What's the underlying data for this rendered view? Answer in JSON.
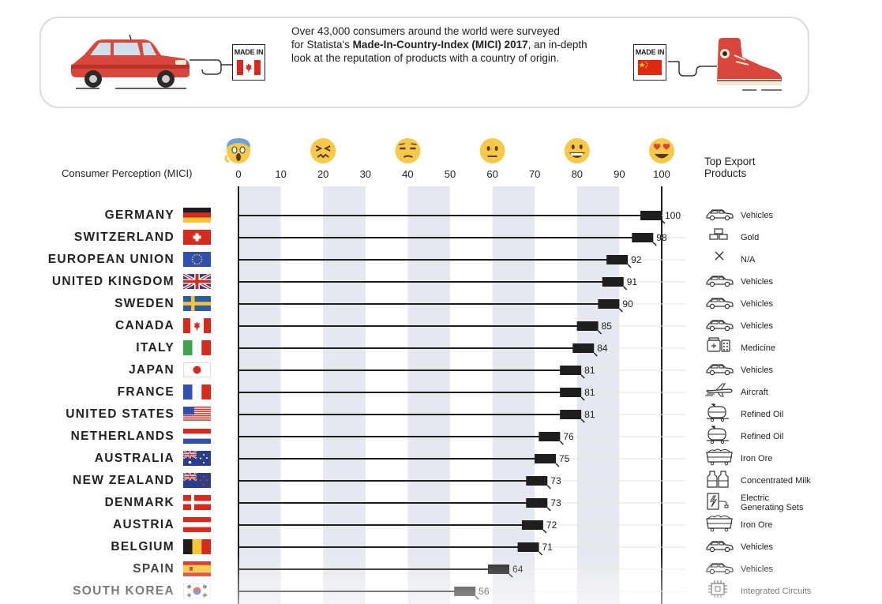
{
  "banner": {
    "made_in_label_left": "MADE IN",
    "made_in_label_right": "MADE IN",
    "intro_line1": "Over 43,000 consumers around the world were surveyed",
    "intro_line2_prefix": "for Statista's ",
    "intro_line2_bold": "Made-In-Country-Index (MICI) 2017",
    "intro_line2_suffix": ", an in-depth",
    "intro_line3": "look at the reputation of products with a country of origin.",
    "left_icon": "red-car-icon",
    "right_icon": "red-sneaker-icon"
  },
  "chart_data": {
    "type": "bar",
    "xlabel": "Consumer Perception (MICI)",
    "xlim": [
      0,
      100
    ],
    "x_ticks": [
      0,
      10,
      20,
      30,
      40,
      50,
      60,
      70,
      80,
      90,
      100
    ],
    "emoji_scale": [
      {
        "at": 0,
        "icon": "screaming-face-icon"
      },
      {
        "at": 20,
        "icon": "tired-face-icon"
      },
      {
        "at": 40,
        "icon": "unamused-face-icon"
      },
      {
        "at": 60,
        "icon": "neutral-face-icon"
      },
      {
        "at": 80,
        "icon": "grinning-face-icon"
      },
      {
        "at": 100,
        "icon": "heart-eyes-face-icon"
      }
    ],
    "exports_title_line1": "Top Export",
    "exports_title_line2": "Products",
    "categories": [
      "GERMANY",
      "SWITZERLAND",
      "EUROPEAN UNION",
      "UNITED KINGDOM",
      "SWEDEN",
      "CANADA",
      "ITALY",
      "JAPAN",
      "FRANCE",
      "UNITED STATES",
      "NETHERLANDS",
      "AUSTRALIA",
      "NEW ZEALAND",
      "DENMARK",
      "AUSTRIA",
      "BELGIUM",
      "SPAIN",
      "SOUTH KOREA"
    ],
    "values": [
      100,
      98,
      92,
      91,
      90,
      85,
      84,
      81,
      81,
      81,
      76,
      75,
      73,
      73,
      72,
      71,
      64,
      56
    ],
    "flags": [
      "germany-flag",
      "switzerland-flag",
      "eu-flag",
      "uk-flag",
      "sweden-flag",
      "canada-flag",
      "italy-flag",
      "japan-flag",
      "france-flag",
      "usa-flag",
      "netherlands-flag",
      "australia-flag",
      "new-zealand-flag",
      "denmark-flag",
      "austria-flag",
      "belgium-flag",
      "spain-flag",
      "south-korea-flag"
    ],
    "exports": [
      "Vehicles",
      "Gold",
      "N/A",
      "Vehicles",
      "Vehicles",
      "Vehicles",
      "Medicine",
      "Vehicles",
      "Aircraft",
      "Refined Oil",
      "Refined Oil",
      "Iron Ore",
      "Concentrated Milk",
      "Electric\nGenerating Sets",
      "Iron Ore",
      "Vehicles",
      "Vehicles",
      "Integrated Circuits"
    ],
    "export_icons": [
      "car-icon",
      "gold-bars-icon",
      "x-icon",
      "car-icon",
      "car-icon",
      "car-icon",
      "medicine-icon",
      "car-icon",
      "airplane-icon",
      "oil-tank-icon",
      "oil-tank-icon",
      "ore-cart-icon",
      "milk-bottles-icon",
      "power-icon",
      "ore-cart-icon",
      "car-icon",
      "car-icon",
      "chip-icon"
    ],
    "colors": {
      "bar": "#1e1e1e",
      "band": "#e5e8ee",
      "accent_red": "#d63b34"
    }
  }
}
